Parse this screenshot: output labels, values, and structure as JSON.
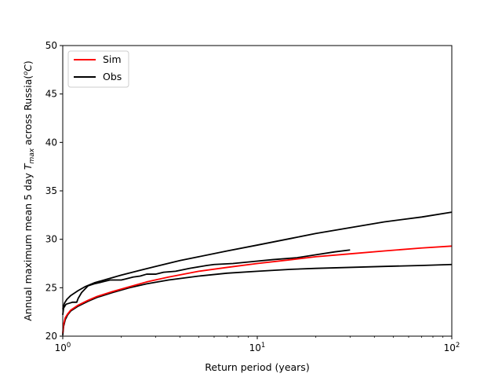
{
  "chart_data": {
    "type": "line",
    "xscale": "log",
    "xlabel": "Return period (years)",
    "ylabel_prefix": "Annual maximum mean 5 day ",
    "ylabel_var": "T",
    "ylabel_sub": "max",
    "ylabel_suffix": " across Russia(",
    "ylabel_unit_sup": "o",
    "ylabel_unit": "C",
    "ylabel_close": ")",
    "xlim": [
      1,
      100
    ],
    "ylim": [
      20,
      50
    ],
    "yticks": [
      20,
      25,
      30,
      35,
      40,
      45,
      50
    ],
    "ytick_labels": [
      "20",
      "25",
      "30",
      "35",
      "40",
      "45",
      "50"
    ],
    "xticks": [
      1,
      10,
      100
    ],
    "xtick_base": "10",
    "xtick_exps": [
      "0",
      "1",
      "2"
    ],
    "grid": false,
    "legend_position": "upper-left",
    "legend": [
      {
        "label": "Sim",
        "color": "#ff0000"
      },
      {
        "label": "Obs",
        "color": "#000000"
      }
    ],
    "series": [
      {
        "name": "Sim",
        "color": "#ff0000",
        "role": "central",
        "x": [
          1.0,
          1.01,
          1.03,
          1.06,
          1.1,
          1.2,
          1.35,
          1.5,
          1.8,
          2.2,
          2.7,
          3.5,
          5,
          7,
          10,
          15,
          20,
          30,
          45,
          70,
          100
        ],
        "y": [
          20.3,
          21.2,
          21.9,
          22.3,
          22.7,
          23.2,
          23.7,
          24.1,
          24.6,
          25.1,
          25.6,
          26.1,
          26.7,
          27.1,
          27.5,
          27.9,
          28.2,
          28.5,
          28.8,
          29.1,
          29.3
        ]
      },
      {
        "name": "Obs",
        "color": "#000000",
        "role": "observed",
        "x": [
          1.0,
          1.01,
          1.04,
          1.08,
          1.12,
          1.18,
          1.2,
          1.25,
          1.35,
          1.45,
          1.6,
          1.75,
          2.0,
          2.1,
          2.3,
          2.5,
          2.7,
          3.0,
          3.3,
          3.8,
          4.5,
          5.5,
          6.0,
          7.5,
          9.5,
          12,
          16,
          20,
          25,
          30
        ],
        "y": [
          22.2,
          22.9,
          23.3,
          23.4,
          23.5,
          23.5,
          23.9,
          24.5,
          25.2,
          25.4,
          25.6,
          25.8,
          25.8,
          25.9,
          26.1,
          26.2,
          26.4,
          26.4,
          26.6,
          26.7,
          27.0,
          27.3,
          27.4,
          27.5,
          27.7,
          27.9,
          28.1,
          28.4,
          28.7,
          28.9
        ]
      },
      {
        "name": "Obs",
        "color": "#000000",
        "role": "upper-bound",
        "x": [
          1.0,
          1.02,
          1.05,
          1.1,
          1.2,
          1.3,
          1.45,
          1.7,
          2.0,
          2.5,
          3.0,
          4.0,
          5.0,
          7.0,
          10,
          15,
          20,
          30,
          45,
          70,
          100
        ],
        "y": [
          22.8,
          23.4,
          23.8,
          24.2,
          24.7,
          25.1,
          25.5,
          25.9,
          26.3,
          26.8,
          27.2,
          27.8,
          28.2,
          28.8,
          29.4,
          30.1,
          30.6,
          31.2,
          31.8,
          32.3,
          32.8
        ]
      },
      {
        "name": "Obs",
        "color": "#000000",
        "role": "lower-bound",
        "x": [
          1.0,
          1.01,
          1.03,
          1.06,
          1.1,
          1.2,
          1.35,
          1.5,
          1.8,
          2.2,
          2.7,
          3.5,
          5,
          7,
          10,
          15,
          20,
          30,
          45,
          70,
          100
        ],
        "y": [
          20.1,
          21.0,
          21.7,
          22.2,
          22.6,
          23.1,
          23.6,
          24.0,
          24.5,
          25.0,
          25.4,
          25.8,
          26.2,
          26.5,
          26.7,
          26.9,
          27.0,
          27.1,
          27.2,
          27.3,
          27.4
        ]
      }
    ]
  }
}
